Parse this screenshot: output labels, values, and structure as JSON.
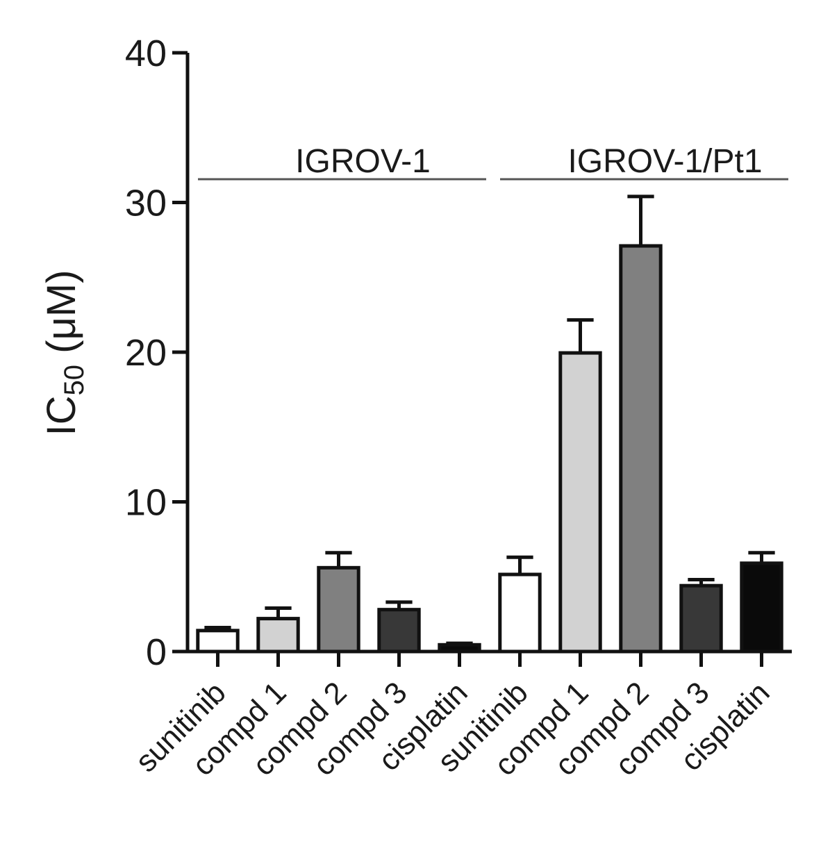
{
  "chart_data": {
    "type": "bar",
    "ylabel": {
      "main": "IC",
      "sub": "50",
      "unit": " (μM)"
    },
    "groups": [
      "IGROV-1",
      "IGROV-1/Pt1"
    ],
    "categories": [
      "sunitinib",
      "compd 1",
      "compd 2",
      "compd 3",
      "cisplatin",
      "sunitinib",
      "compd 1",
      "compd 2",
      "compd 3",
      "cisplatin"
    ],
    "values": [
      1.4,
      2.2,
      5.6,
      2.8,
      0.45,
      5.15,
      19.95,
      27.1,
      4.4,
      5.9
    ],
    "errors": [
      0.2,
      0.7,
      1.0,
      0.5,
      0.1,
      1.15,
      2.2,
      3.3,
      0.4,
      0.7
    ],
    "colors": [
      "#ffffff",
      "#d2d2d2",
      "#808080",
      "#383838",
      "#0a0a0a",
      "#ffffff",
      "#d2d2d2",
      "#808080",
      "#383838",
      "#0a0a0a"
    ],
    "ylim": [
      0,
      40
    ],
    "yticks": [
      0,
      10,
      20,
      30,
      40
    ]
  }
}
